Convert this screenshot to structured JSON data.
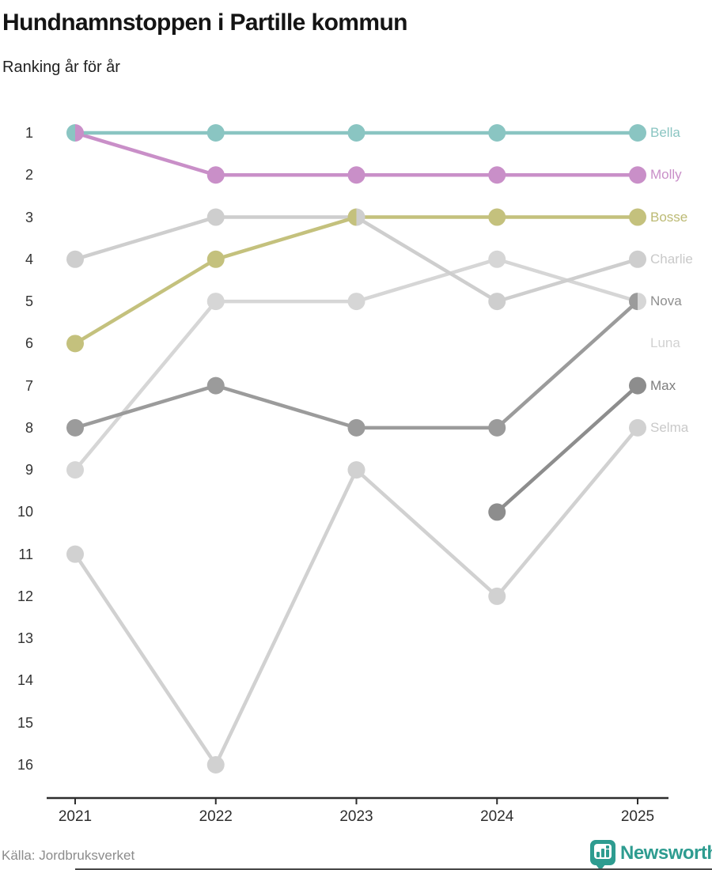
{
  "header": {
    "title": "Hundnamnstoppen i Partille kommun",
    "subtitle": "Ranking år för år"
  },
  "footer": {
    "source": "Källa: Jordbruksverket",
    "brand": "Newsworthy"
  },
  "colors": {
    "brand_teal": "#2e9c90",
    "axis": "#2d2d2d",
    "tick_text": "#333333",
    "title_text": "#141414",
    "source_text": "#8c8c8c"
  },
  "chart_data": {
    "type": "line",
    "variant": "bump-ranking",
    "title": "Hundnamnstoppen i Partille kommun",
    "subtitle": "Ranking år för år",
    "x": [
      "2021",
      "2022",
      "2023",
      "2024",
      "2025"
    ],
    "y_ticks": [
      1,
      2,
      3,
      4,
      5,
      6,
      7,
      8,
      9,
      10,
      11,
      12,
      13,
      14,
      15,
      16
    ],
    "ylim": [
      1,
      16
    ],
    "y_inverted": true,
    "grid": false,
    "legend_position": "right-end-labels",
    "series": [
      {
        "name": "Bella",
        "color": "#8ac5c2",
        "label_color": "#8ac5c2",
        "values": [
          1,
          1,
          1,
          1,
          1
        ]
      },
      {
        "name": "Molly",
        "color": "#c98fc8",
        "label_color": "#c98fc8",
        "values": [
          1,
          2,
          2,
          2,
          2
        ]
      },
      {
        "name": "Bosse",
        "color": "#c4c17d",
        "label_color": "#bcba74",
        "values": [
          6,
          4,
          3,
          3,
          3
        ]
      },
      {
        "name": "Charlie",
        "color": "#cecece",
        "label_color": "#c9c9c9",
        "values": [
          4,
          3,
          3,
          5,
          4
        ]
      },
      {
        "name": "Nova",
        "color": "#9b9b9b",
        "label_color": "#8f8f8f",
        "values": [
          8,
          7,
          8,
          8,
          5
        ]
      },
      {
        "name": "Luna",
        "color": "#d6d6d6",
        "label_color": "#d2d2d2",
        "values": [
          9,
          5,
          5,
          4,
          5
        ]
      },
      {
        "name": "Max",
        "color": "#8d8d8d",
        "label_color": "#7e7e7e",
        "values": [
          null,
          null,
          null,
          10,
          7
        ]
      },
      {
        "name": "Selma",
        "color": "#d1d1d1",
        "label_color": "#c9c9c9",
        "values": [
          11,
          16,
          9,
          12,
          8
        ]
      }
    ]
  }
}
